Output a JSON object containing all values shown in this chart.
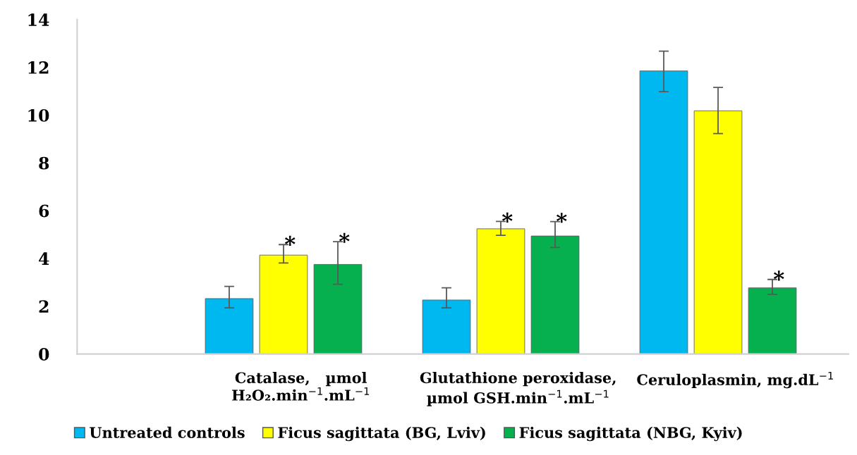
{
  "chart_data": {
    "type": "bar",
    "categories": [
      "Catalase,   µmol\nH₂O₂.min$^{−1}$.mL$^{−1}$",
      "Glutathione peroxidase,\nµmol GSH.min$^{−1}$.mL$^{−1}$",
      "Ceruloplasmin, mg.dL$^{−1}$"
    ],
    "series": [
      {
        "name": "Untreated controls",
        "color": "#00b8f0",
        "values": [
          2.32,
          2.26,
          11.85
        ],
        "errors": [
          [
            1.93,
            2.83
          ],
          [
            1.93,
            2.77
          ],
          [
            10.98,
            12.68
          ]
        ]
      },
      {
        "name": "Ficus sagittata (BG, Lviv)",
        "color": "#ffff00",
        "values": [
          4.14,
          5.24,
          10.18
        ],
        "errors": [
          [
            3.81,
            4.58
          ],
          [
            4.97,
            5.55
          ],
          [
            9.23,
            11.16
          ]
        ],
        "value_labels": [
          "*",
          "*",
          null
        ]
      },
      {
        "name": "Ficus sagittata (NBG, Kyiv)",
        "color": "#07b04e",
        "values": [
          3.75,
          4.94,
          2.77
        ],
        "errors": [
          [
            2.92,
            4.7
          ],
          [
            4.46,
            5.54
          ],
          [
            2.5,
            3.12
          ]
        ],
        "value_labels": [
          "*",
          "*",
          "*"
        ]
      }
    ],
    "ylim": [
      0,
      14
    ],
    "yticks": [
      0,
      2,
      4,
      6,
      8,
      10,
      12,
      14
    ],
    "grid": false,
    "legend": "bottom"
  }
}
